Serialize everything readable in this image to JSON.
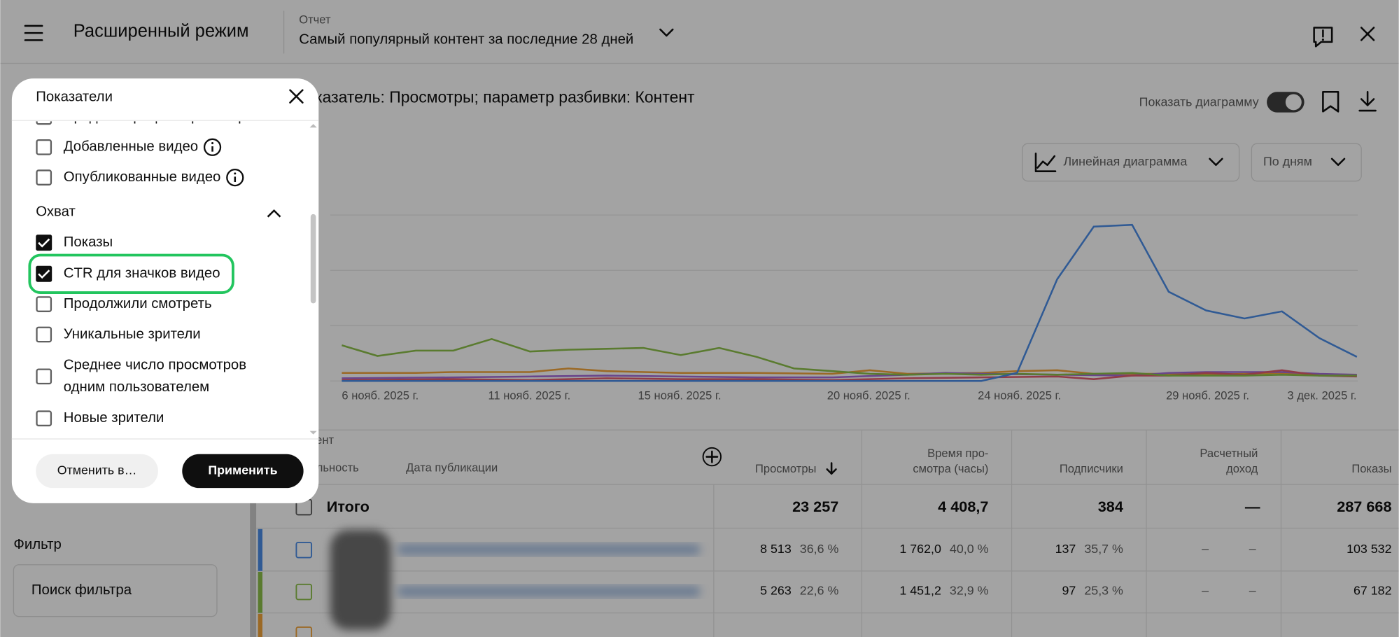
{
  "header": {
    "title": "Расширенный режим",
    "report_label": "Отчет",
    "report_name": "Самый популярный контент за последние 28 дней"
  },
  "chart": {
    "title": "Показатель: Просмотры; параметр разбивки: Контент",
    "show_chart": "Показать диаграмму",
    "chart_type": "Линейная диаграмма",
    "period": "По дням",
    "x_labels": [
      "6 нояб. 2025 г.",
      "11 нояб. 2025 г.",
      "15 нояб. 2025 г.",
      "20 нояб. 2025 г.",
      "24 нояб. 2025 г.",
      "29 нояб. 2025 г.",
      "3 дек. 2025 г."
    ]
  },
  "table": {
    "columns": {
      "content": "Контент",
      "duration": "Длительность",
      "published": "Дата публикации",
      "views": "Просмотры",
      "watch_time": [
        "Время про-",
        "смотра (часы)"
      ],
      "subscribers": "Подписчики",
      "revenue": [
        "Расчетный",
        "доход"
      ],
      "impressions": "Показы"
    },
    "total": {
      "label": "Итого",
      "values": [
        "23 257",
        "4 408,7",
        "384",
        "—",
        "287 668"
      ]
    },
    "rows": [
      [
        "8 513",
        "36,6 %",
        "1 762,0",
        "40,0 %",
        "137",
        "35,7 %",
        "–",
        "–",
        "103 532"
      ],
      [
        "5 263",
        "22,6 %",
        "1 451,2",
        "32,9 %",
        "97",
        "25,3 %",
        "–",
        "–",
        "67 182"
      ]
    ]
  },
  "sidebar": {
    "filter_label": "Фильтр",
    "filter_placeholder": "Поиск фильтра"
  },
  "panel": {
    "title": "Показатели",
    "items_before": [
      {
        "label": "Средний процент просмотра",
        "checked": false
      },
      {
        "label": "Добавленные видео",
        "checked": false,
        "info": true
      },
      {
        "label": "Опубликованные видео",
        "checked": false,
        "info": true
      }
    ],
    "section": "Охват",
    "items_after": [
      {
        "label": "Показы",
        "checked": true
      },
      {
        "label": "CTR для значков видео",
        "checked": true,
        "highlighted": true
      },
      {
        "label": "Продолжили смотреть",
        "checked": false
      },
      {
        "label": "Уникальные зрители",
        "checked": false
      },
      {
        "label": [
          "Среднее число просмотров",
          "одним пользователем"
        ],
        "checked": false
      },
      {
        "label": "Новые зрители",
        "checked": false
      }
    ],
    "cancel": "Отменить в…",
    "apply": "Применить"
  }
}
